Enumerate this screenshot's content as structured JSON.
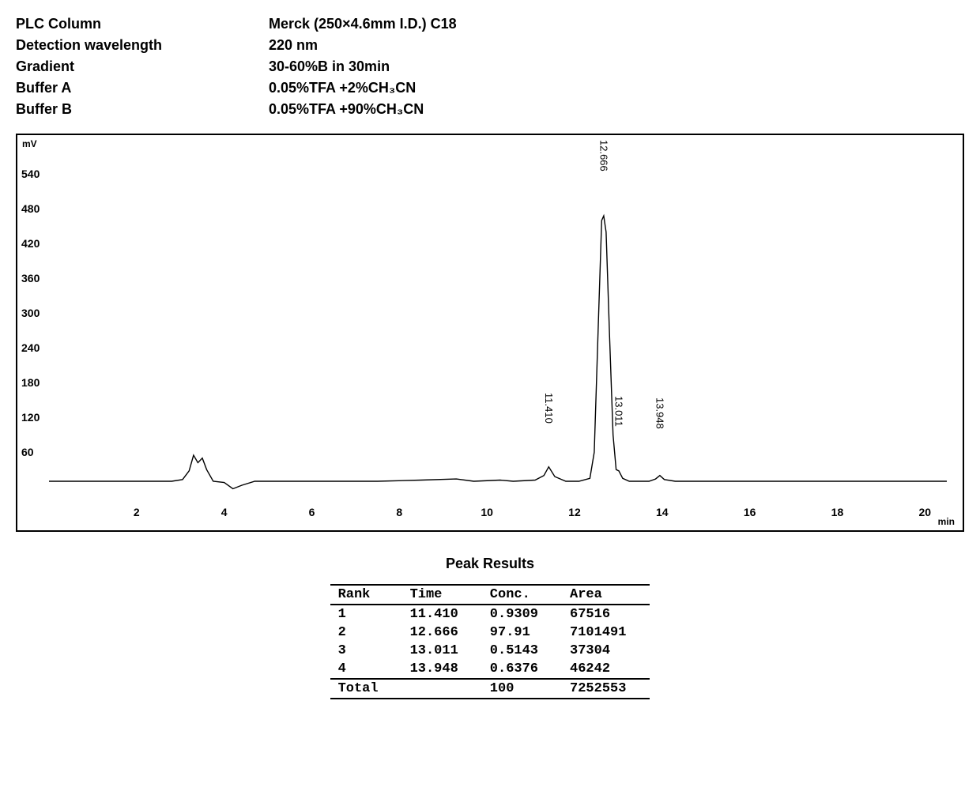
{
  "parameters": {
    "rows": [
      {
        "label": "PLC Column",
        "value": "Merck (250×4.6mm I.D.) C18"
      },
      {
        "label": "Detection wavelength",
        "value": "220 nm"
      },
      {
        "label": "Gradient",
        "value": "30-60%B in 30min"
      },
      {
        "label": "Buffer A",
        "value": "0.05%TFA +2%CH₃CN"
      },
      {
        "label": "Buffer B",
        "value": "0.05%TFA +90%CH₃CN"
      }
    ]
  },
  "chromatogram": {
    "y_unit": "mV",
    "x_unit": "min",
    "xlim": [
      0,
      20.5
    ],
    "ylim": [
      -20,
      580
    ],
    "y_ticks": [
      60,
      120,
      180,
      240,
      300,
      360,
      420,
      480,
      540
    ],
    "x_ticks": [
      2,
      4,
      6,
      8,
      10,
      12,
      14,
      16,
      18,
      20
    ],
    "line_color": "#000000",
    "line_width": 1.4,
    "background_color": "#ffffff",
    "baseline_y": 10,
    "trace": [
      {
        "x": 0.0,
        "y": 10
      },
      {
        "x": 1.0,
        "y": 10
      },
      {
        "x": 2.0,
        "y": 10
      },
      {
        "x": 2.8,
        "y": 10
      },
      {
        "x": 3.05,
        "y": 13
      },
      {
        "x": 3.2,
        "y": 28
      },
      {
        "x": 3.3,
        "y": 55
      },
      {
        "x": 3.4,
        "y": 42
      },
      {
        "x": 3.5,
        "y": 50
      },
      {
        "x": 3.6,
        "y": 30
      },
      {
        "x": 3.75,
        "y": 10
      },
      {
        "x": 4.0,
        "y": 8
      },
      {
        "x": 4.2,
        "y": -3
      },
      {
        "x": 4.4,
        "y": 3
      },
      {
        "x": 4.7,
        "y": 10
      },
      {
        "x": 5.5,
        "y": 10
      },
      {
        "x": 6.5,
        "y": 10
      },
      {
        "x": 7.5,
        "y": 10
      },
      {
        "x": 8.5,
        "y": 12
      },
      {
        "x": 9.3,
        "y": 14
      },
      {
        "x": 9.7,
        "y": 10
      },
      {
        "x": 10.3,
        "y": 12
      },
      {
        "x": 10.6,
        "y": 10
      },
      {
        "x": 11.1,
        "y": 12
      },
      {
        "x": 11.3,
        "y": 20
      },
      {
        "x": 11.41,
        "y": 35
      },
      {
        "x": 11.55,
        "y": 18
      },
      {
        "x": 11.8,
        "y": 10
      },
      {
        "x": 12.1,
        "y": 10
      },
      {
        "x": 12.35,
        "y": 15
      },
      {
        "x": 12.45,
        "y": 60
      },
      {
        "x": 12.55,
        "y": 300
      },
      {
        "x": 12.62,
        "y": 460
      },
      {
        "x": 12.666,
        "y": 468
      },
      {
        "x": 12.72,
        "y": 440
      },
      {
        "x": 12.8,
        "y": 260
      },
      {
        "x": 12.88,
        "y": 90
      },
      {
        "x": 12.95,
        "y": 30
      },
      {
        "x": 13.011,
        "y": 28
      },
      {
        "x": 13.1,
        "y": 15
      },
      {
        "x": 13.25,
        "y": 10
      },
      {
        "x": 13.7,
        "y": 10
      },
      {
        "x": 13.85,
        "y": 14
      },
      {
        "x": 13.948,
        "y": 20
      },
      {
        "x": 14.05,
        "y": 13
      },
      {
        "x": 14.3,
        "y": 10
      },
      {
        "x": 15.0,
        "y": 10
      },
      {
        "x": 16.0,
        "y": 10
      },
      {
        "x": 17.0,
        "y": 10
      },
      {
        "x": 18.0,
        "y": 10
      },
      {
        "x": 19.0,
        "y": 10
      },
      {
        "x": 20.0,
        "y": 10
      },
      {
        "x": 20.5,
        "y": 10
      }
    ],
    "peak_labels": [
      {
        "text": "11.410",
        "x": 11.41,
        "y_top": 110
      },
      {
        "text": "12.666",
        "x": 12.666,
        "y_top": 545
      },
      {
        "text": "13.011",
        "x": 13.011,
        "y_top": 105
      },
      {
        "text": "13.948",
        "x": 13.948,
        "y_top": 100
      }
    ]
  },
  "peak_results": {
    "title": "Peak Results",
    "columns": [
      "Rank",
      "Time",
      "Conc.",
      "Area"
    ],
    "rows": [
      [
        "1",
        "11.410",
        "0.9309",
        "67516"
      ],
      [
        "2",
        "12.666",
        "97.91",
        "7101491"
      ],
      [
        "3",
        "13.011",
        "0.5143",
        "37304"
      ],
      [
        "4",
        "13.948",
        "0.6376",
        "46242"
      ]
    ],
    "total_row": [
      "Total",
      "",
      "100",
      "7252553"
    ]
  }
}
